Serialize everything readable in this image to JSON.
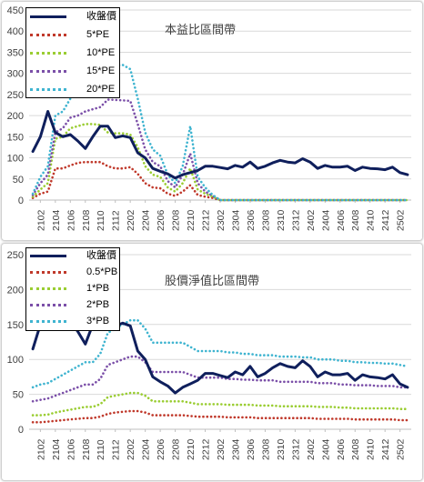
{
  "chart_data": [
    {
      "type": "line",
      "title": "本益比區間帶",
      "ylim": [
        0,
        450
      ],
      "yticks": [
        0,
        50,
        100,
        150,
        200,
        250,
        300,
        350,
        400,
        450
      ],
      "x": [
        "2101",
        "2102",
        "2103",
        "2104",
        "2105",
        "2106",
        "2107",
        "2108",
        "2109",
        "2110",
        "2111",
        "2112",
        "2201",
        "2202",
        "2203",
        "2204",
        "2205",
        "2206",
        "2207",
        "2208",
        "2209",
        "2210",
        "2211",
        "2212",
        "2301",
        "2302",
        "2303",
        "2304",
        "2305",
        "2306",
        "2307",
        "2308",
        "2309",
        "2310",
        "2311",
        "2312",
        "2401",
        "2402",
        "2403",
        "2404",
        "2405",
        "2406",
        "2407",
        "2408",
        "2409",
        "2410",
        "2411",
        "2412",
        "2501",
        "2502",
        "2503"
      ],
      "xtick_labels": [
        "2102",
        "2104",
        "2106",
        "2108",
        "2110",
        "2112",
        "2202",
        "2204",
        "2206",
        "2208",
        "2210",
        "2212",
        "2302",
        "2304",
        "2306",
        "2308",
        "2310",
        "2312",
        "2402",
        "2404",
        "2406",
        "2408",
        "2410",
        "2412",
        "2502"
      ],
      "legend_position": "top-left",
      "series": [
        {
          "name": "收盤價",
          "color": "#0f1f5c",
          "style": "solid",
          "values": [
            115,
            150,
            210,
            160,
            150,
            155,
            140,
            122,
            150,
            175,
            175,
            148,
            152,
            148,
            112,
            100,
            75,
            68,
            62,
            52,
            60,
            65,
            70,
            80,
            80,
            77,
            74,
            82,
            78,
            90,
            75,
            80,
            88,
            94,
            90,
            88,
            98,
            90,
            75,
            82,
            78,
            78,
            80,
            70,
            78,
            75,
            74,
            72,
            78,
            65,
            60
          ]
        },
        {
          "name": "5*PE",
          "color": "#c0392b",
          "style": "dotted",
          "values": [
            5,
            15,
            20,
            75,
            75,
            82,
            88,
            90,
            90,
            90,
            80,
            75,
            75,
            78,
            62,
            40,
            30,
            28,
            15,
            10,
            20,
            35,
            12,
            8,
            5,
            0,
            0,
            0,
            0,
            0,
            0,
            0,
            0,
            0,
            0,
            0,
            0,
            0,
            0,
            0,
            0,
            0,
            0,
            0,
            0,
            0,
            0,
            0,
            0,
            0,
            0
          ]
        },
        {
          "name": "10*PE",
          "color": "#9acd32",
          "style": "dotted",
          "values": [
            8,
            25,
            40,
            145,
            150,
            170,
            175,
            180,
            180,
            178,
            160,
            158,
            158,
            155,
            125,
            80,
            60,
            55,
            30,
            20,
            40,
            75,
            25,
            15,
            8,
            0,
            0,
            0,
            0,
            0,
            0,
            0,
            0,
            0,
            0,
            0,
            0,
            0,
            0,
            0,
            0,
            0,
            0,
            0,
            0,
            0,
            0,
            0,
            0,
            0,
            0
          ]
        },
        {
          "name": "15*PE",
          "color": "#7b4fa8",
          "style": "dotted",
          "values": [
            12,
            40,
            60,
            160,
            170,
            195,
            200,
            210,
            215,
            220,
            238,
            237,
            236,
            235,
            180,
            120,
            90,
            80,
            45,
            30,
            60,
            110,
            40,
            20,
            10,
            0,
            0,
            0,
            0,
            0,
            0,
            0,
            0,
            0,
            0,
            0,
            0,
            0,
            0,
            0,
            0,
            0,
            0,
            0,
            0,
            0,
            0,
            0,
            0,
            0,
            0
          ]
        },
        {
          "name": "20*PE",
          "color": "#3fb4d0",
          "style": "dotted",
          "values": [
            15,
            55,
            80,
            200,
            210,
            240,
            250,
            270,
            285,
            300,
            320,
            318,
            320,
            310,
            240,
            160,
            120,
            105,
            60,
            40,
            80,
            175,
            55,
            30,
            12,
            0,
            0,
            0,
            0,
            0,
            0,
            0,
            0,
            0,
            0,
            0,
            0,
            0,
            0,
            0,
            0,
            0,
            0,
            0,
            0,
            0,
            0,
            0,
            0,
            0,
            0
          ]
        }
      ]
    },
    {
      "type": "line",
      "title": "股價淨值比區間帶",
      "ylim": [
        0,
        250
      ],
      "yticks": [
        0,
        50,
        100,
        150,
        200,
        250
      ],
      "x": [
        "2101",
        "2102",
        "2103",
        "2104",
        "2105",
        "2106",
        "2107",
        "2108",
        "2109",
        "2110",
        "2111",
        "2112",
        "2201",
        "2202",
        "2203",
        "2204",
        "2205",
        "2206",
        "2207",
        "2208",
        "2209",
        "2210",
        "2211",
        "2212",
        "2301",
        "2302",
        "2303",
        "2304",
        "2305",
        "2306",
        "2307",
        "2308",
        "2309",
        "2310",
        "2311",
        "2312",
        "2401",
        "2402",
        "2403",
        "2404",
        "2405",
        "2406",
        "2407",
        "2408",
        "2409",
        "2410",
        "2411",
        "2412",
        "2501",
        "2502",
        "2503"
      ],
      "xtick_labels": [
        "2102",
        "2104",
        "2106",
        "2108",
        "2110",
        "2112",
        "2202",
        "2204",
        "2206",
        "2208",
        "2210",
        "2212",
        "2302",
        "2304",
        "2306",
        "2308",
        "2310",
        "2312",
        "2402",
        "2404",
        "2406",
        "2408",
        "2410",
        "2412",
        "2502"
      ],
      "legend_position": "top-left",
      "series": [
        {
          "name": "收盤價",
          "color": "#0f1f5c",
          "style": "solid",
          "values": [
            115,
            150,
            210,
            160,
            150,
            155,
            140,
            122,
            150,
            175,
            175,
            148,
            152,
            148,
            112,
            100,
            75,
            68,
            62,
            52,
            60,
            65,
            70,
            80,
            80,
            77,
            74,
            82,
            78,
            90,
            75,
            80,
            88,
            94,
            90,
            88,
            98,
            90,
            75,
            82,
            78,
            78,
            80,
            70,
            78,
            75,
            74,
            72,
            78,
            65,
            60
          ]
        },
        {
          "name": "0.5*PB",
          "color": "#c0392b",
          "style": "dotted",
          "values": [
            10,
            10,
            11,
            12,
            13,
            14,
            15,
            16,
            16,
            18,
            22,
            24,
            25,
            26,
            26,
            24,
            20,
            20,
            20,
            20,
            20,
            19,
            18,
            18,
            18,
            18,
            17,
            17,
            17,
            17,
            16,
            16,
            16,
            16,
            16,
            16,
            16,
            16,
            15,
            15,
            15,
            15,
            15,
            14,
            14,
            14,
            14,
            14,
            14,
            13,
            13
          ]
        },
        {
          "name": "1*PB",
          "color": "#9acd32",
          "style": "dotted",
          "values": [
            20,
            20,
            21,
            24,
            26,
            28,
            30,
            32,
            32,
            36,
            46,
            48,
            50,
            52,
            52,
            48,
            40,
            40,
            40,
            40,
            40,
            38,
            36,
            36,
            36,
            36,
            35,
            35,
            35,
            35,
            34,
            34,
            34,
            33,
            33,
            33,
            33,
            33,
            32,
            32,
            32,
            31,
            31,
            30,
            30,
            30,
            30,
            30,
            30,
            29,
            29
          ]
        },
        {
          "name": "2*PB",
          "color": "#7b4fa8",
          "style": "dotted",
          "values": [
            40,
            42,
            44,
            48,
            52,
            56,
            60,
            64,
            64,
            72,
            92,
            96,
            100,
            104,
            104,
            96,
            82,
            82,
            82,
            82,
            82,
            78,
            74,
            74,
            74,
            74,
            72,
            72,
            71,
            71,
            70,
            70,
            70,
            68,
            68,
            68,
            68,
            68,
            66,
            66,
            66,
            64,
            64,
            63,
            63,
            63,
            62,
            62,
            62,
            60,
            60
          ]
        },
        {
          "name": "3*PB",
          "color": "#3fb4d0",
          "style": "dotted",
          "values": [
            60,
            64,
            66,
            72,
            78,
            84,
            90,
            96,
            96,
            108,
            138,
            144,
            150,
            156,
            156,
            144,
            124,
            124,
            124,
            124,
            124,
            118,
            112,
            112,
            112,
            112,
            110,
            110,
            108,
            108,
            106,
            106,
            106,
            104,
            104,
            104,
            103,
            103,
            100,
            100,
            100,
            98,
            98,
            96,
            96,
            95,
            95,
            94,
            94,
            92,
            90
          ]
        }
      ]
    }
  ]
}
